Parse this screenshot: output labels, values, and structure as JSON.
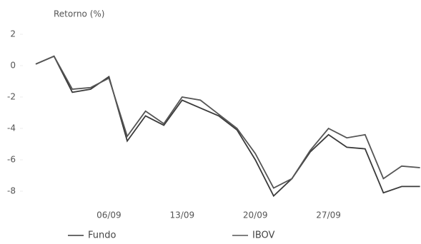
{
  "chart_data": {
    "type": "line",
    "y_label": "Retorno (%)",
    "categories": [
      null,
      null,
      null,
      null,
      "06/09",
      null,
      null,
      null,
      "13/09",
      null,
      null,
      null,
      "20/09",
      null,
      null,
      null,
      "27/09",
      null,
      null,
      null,
      null,
      null
    ],
    "series": [
      {
        "name": "Fundo",
        "color": "#3a3a3a",
        "values": [
          0.1,
          0.6,
          -1.7,
          -1.5,
          -0.7,
          -4.8,
          -3.2,
          -3.8,
          -2.2,
          -2.7,
          -3.2,
          -4.1,
          -6.0,
          -8.3,
          -7.2,
          -5.5,
          -4.4,
          -5.2,
          -5.3,
          -8.1,
          -7.7,
          -7.7
        ]
      },
      {
        "name": "IBOV",
        "color": "#555555",
        "values": [
          0.1,
          0.6,
          -1.5,
          -1.4,
          -0.8,
          -4.5,
          -2.9,
          -3.7,
          -2.0,
          -2.2,
          -3.1,
          -4.0,
          -5.6,
          -7.8,
          -7.2,
          -5.4,
          -4.0,
          -4.6,
          -4.4,
          -7.2,
          -6.4,
          -6.5
        ]
      }
    ],
    "ylim": [
      -9,
      2.5
    ],
    "yticks": [
      2,
      0,
      -2,
      -4,
      -6,
      -8
    ]
  }
}
